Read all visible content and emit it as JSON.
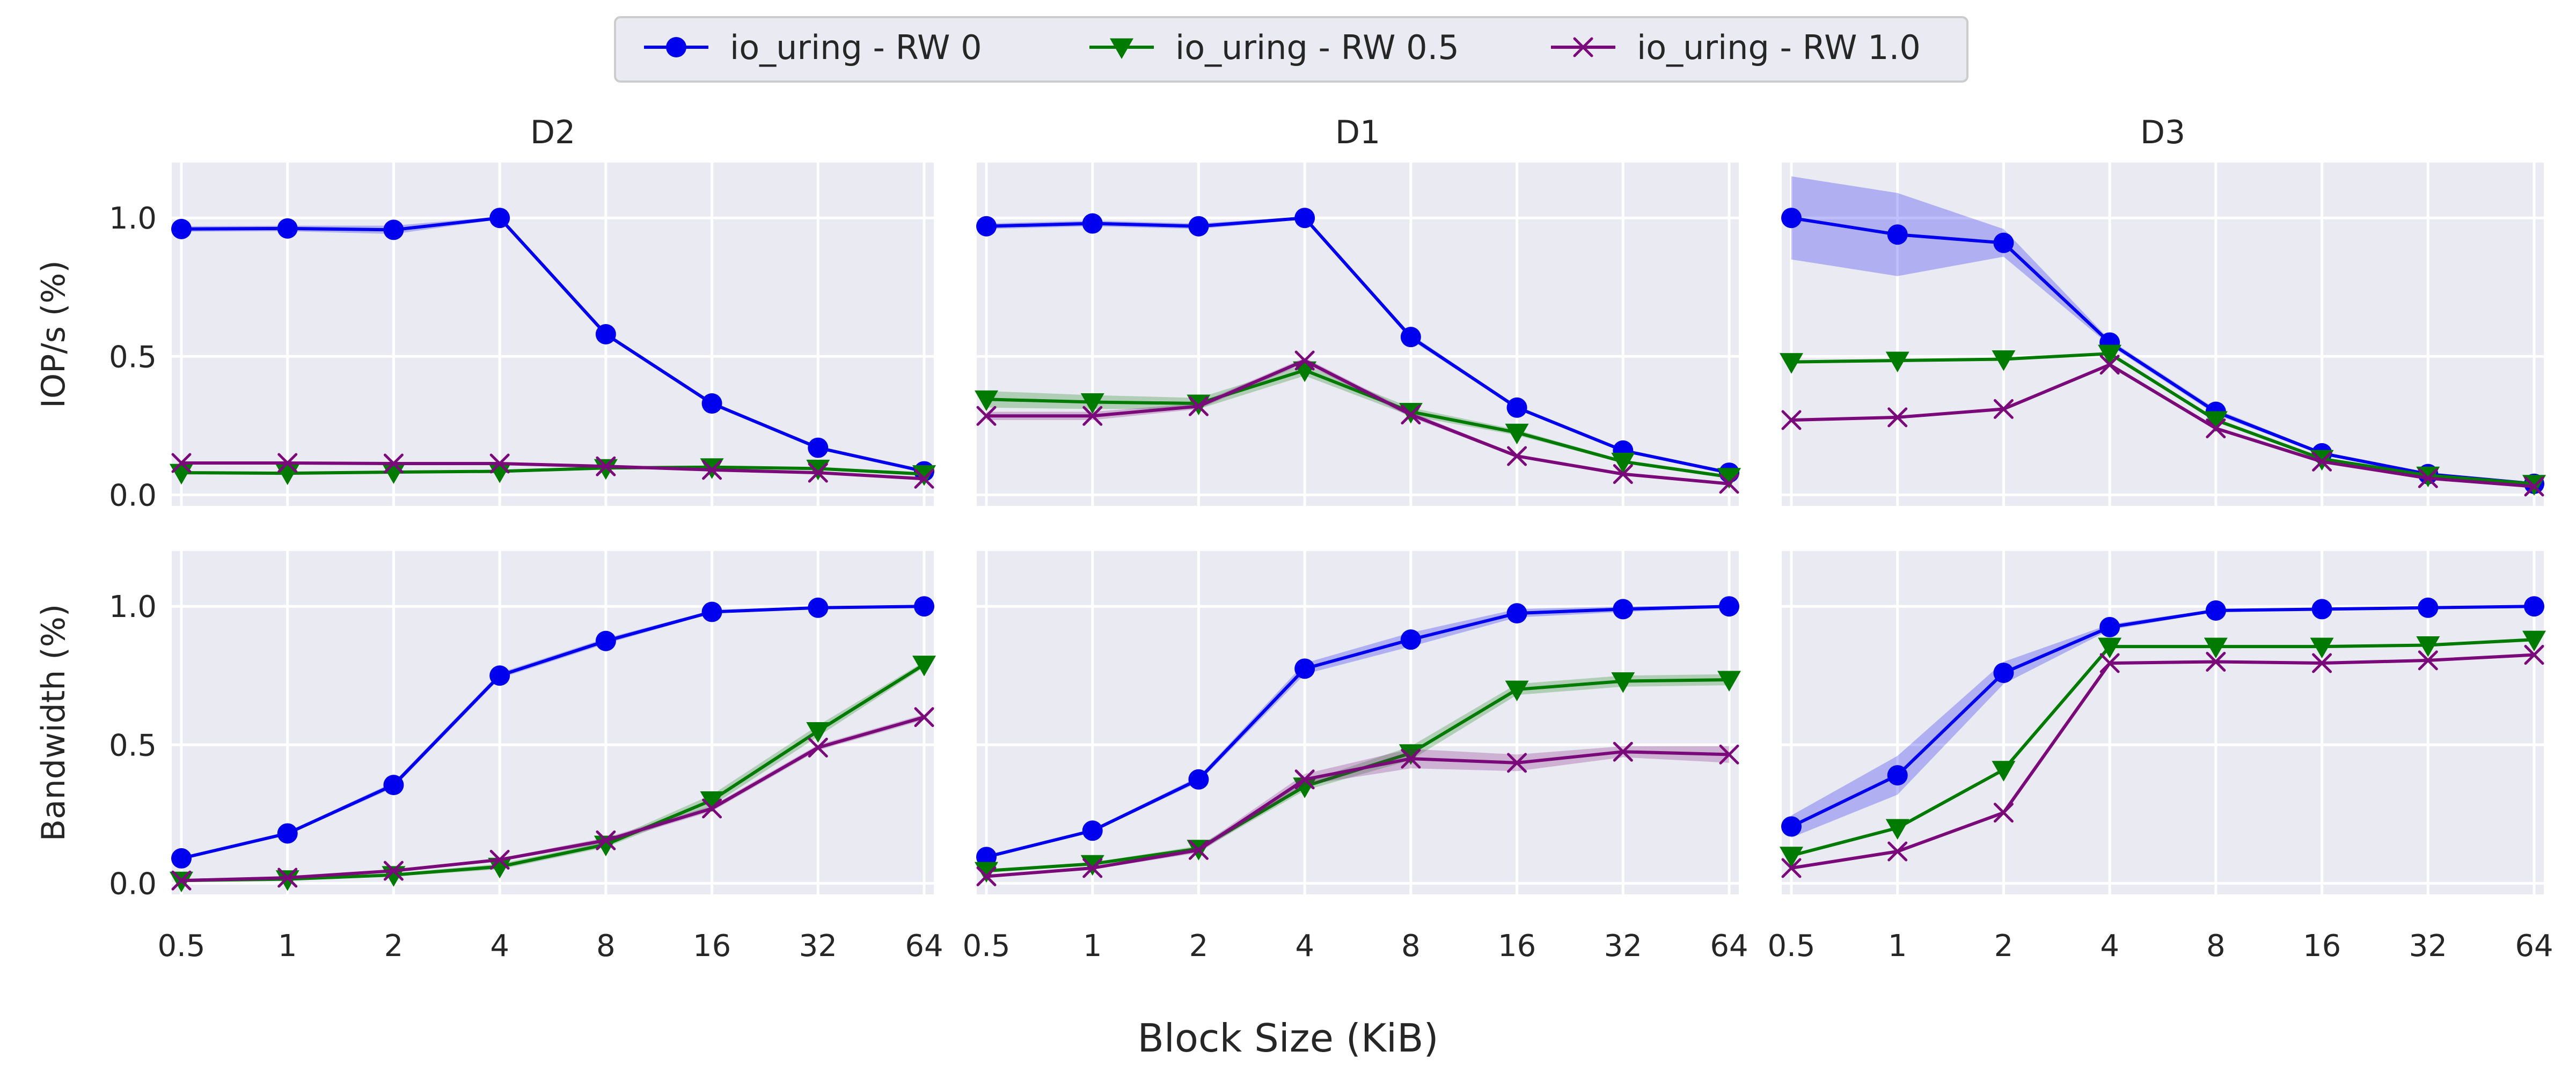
{
  "legend": {
    "entries": [
      {
        "label": "io_uring - RW 0",
        "color": "#0000ee",
        "marker": "circle"
      },
      {
        "label": "io_uring - RW 0.5",
        "color": "#007a00",
        "marker": "triangle-down"
      },
      {
        "label": "io_uring - RW 1.0",
        "color": "#7a0a7a",
        "marker": "x"
      }
    ],
    "placement": "top-center"
  },
  "shared_xlabel": "Block Size (KiB)",
  "chart_data": {
    "type": "line",
    "grid": true,
    "x_scale": "categorical",
    "x_ticks": [
      "0.5",
      "1",
      "2",
      "4",
      "8",
      "16",
      "32",
      "64"
    ],
    "ylim": [
      -0.04,
      1.2
    ],
    "y_ticks": [
      "0.0",
      "0.5",
      "1.0"
    ],
    "panels": [
      {
        "title": "D2",
        "row": 0,
        "col": 0,
        "ylabel": "IOP/s (%)",
        "series": [
          {
            "name": "io_uring - RW 0",
            "values": [
              0.96,
              0.962,
              0.957,
              1.0,
              0.58,
              0.33,
              0.17,
              0.085
            ],
            "band": [
              0.01,
              0.01,
              0.015,
              0.005,
              0.005,
              0.005,
              0.005,
              0.005
            ]
          },
          {
            "name": "io_uring - RW 0.5",
            "values": [
              0.08,
              0.078,
              0.082,
              0.085,
              0.097,
              0.1,
              0.095,
              0.075
            ],
            "band": [
              0.005,
              0.005,
              0.005,
              0.005,
              0.005,
              0.005,
              0.005,
              0.005
            ]
          },
          {
            "name": "io_uring - RW 1.0",
            "values": [
              0.115,
              0.115,
              0.113,
              0.113,
              0.103,
              0.09,
              0.08,
              0.058
            ],
            "band": [
              0.005,
              0.005,
              0.005,
              0.005,
              0.005,
              0.005,
              0.005,
              0.005
            ]
          }
        ]
      },
      {
        "title": "D1",
        "row": 0,
        "col": 1,
        "ylabel": "",
        "series": [
          {
            "name": "io_uring - RW 0",
            "values": [
              0.97,
              0.98,
              0.97,
              1.0,
              0.57,
              0.315,
              0.16,
              0.08
            ],
            "band": [
              0.01,
              0.01,
              0.01,
              0.005,
              0.01,
              0.005,
              0.005,
              0.005
            ]
          },
          {
            "name": "io_uring - RW 0.5",
            "values": [
              0.345,
              0.335,
              0.33,
              0.45,
              0.3,
              0.225,
              0.12,
              0.065
            ],
            "band": [
              0.03,
              0.025,
              0.02,
              0.02,
              0.015,
              0.01,
              0.005,
              0.005
            ]
          },
          {
            "name": "io_uring - RW 1.0",
            "values": [
              0.285,
              0.285,
              0.32,
              0.485,
              0.29,
              0.14,
              0.075,
              0.04
            ],
            "band": [
              0.015,
              0.015,
              0.01,
              0.01,
              0.01,
              0.005,
              0.005,
              0.005
            ]
          }
        ]
      },
      {
        "title": "D3",
        "row": 0,
        "col": 2,
        "ylabel": "",
        "series": [
          {
            "name": "io_uring - RW 0",
            "values": [
              1.0,
              0.94,
              0.91,
              0.55,
              0.3,
              0.15,
              0.075,
              0.04
            ],
            "band": [
              0.15,
              0.15,
              0.05,
              0.01,
              0.01,
              0.005,
              0.005,
              0.005
            ]
          },
          {
            "name": "io_uring - RW 0.5",
            "values": [
              0.48,
              0.485,
              0.49,
              0.51,
              0.27,
              0.13,
              0.07,
              0.04
            ],
            "band": [
              0.005,
              0.005,
              0.005,
              0.005,
              0.005,
              0.005,
              0.005,
              0.005
            ]
          },
          {
            "name": "io_uring - RW 1.0",
            "values": [
              0.27,
              0.28,
              0.31,
              0.47,
              0.24,
              0.12,
              0.06,
              0.03
            ],
            "band": [
              0.005,
              0.005,
              0.005,
              0.005,
              0.005,
              0.005,
              0.005,
              0.005
            ]
          }
        ]
      },
      {
        "title": "",
        "row": 1,
        "col": 0,
        "ylabel": "Bandwidth (%)",
        "series": [
          {
            "name": "io_uring - RW 0",
            "values": [
              0.09,
              0.18,
              0.355,
              0.75,
              0.875,
              0.98,
              0.995,
              1.0
            ],
            "band": [
              0.005,
              0.005,
              0.01,
              0.01,
              0.01,
              0.005,
              0.005,
              0.005
            ]
          },
          {
            "name": "io_uring - RW 0.5",
            "values": [
              0.01,
              0.015,
              0.03,
              0.06,
              0.14,
              0.3,
              0.55,
              0.79
            ],
            "band": [
              0.005,
              0.005,
              0.005,
              0.01,
              0.01,
              0.02,
              0.02,
              0.01
            ]
          },
          {
            "name": "io_uring - RW 1.0",
            "values": [
              0.01,
              0.02,
              0.045,
              0.085,
              0.155,
              0.27,
              0.49,
              0.6
            ],
            "band": [
              0.005,
              0.005,
              0.005,
              0.005,
              0.01,
              0.01,
              0.01,
              0.01
            ]
          }
        ]
      },
      {
        "title": "",
        "row": 1,
        "col": 1,
        "ylabel": "",
        "series": [
          {
            "name": "io_uring - RW 0",
            "values": [
              0.095,
              0.19,
              0.375,
              0.775,
              0.88,
              0.975,
              0.99,
              1.0
            ],
            "band": [
              0.005,
              0.005,
              0.01,
              0.02,
              0.025,
              0.015,
              0.01,
              0.005
            ]
          },
          {
            "name": "io_uring - RW 0.5",
            "values": [
              0.045,
              0.07,
              0.125,
              0.35,
              0.47,
              0.7,
              0.73,
              0.735
            ],
            "band": [
              0.005,
              0.005,
              0.01,
              0.015,
              0.025,
              0.02,
              0.02,
              0.02
            ]
          },
          {
            "name": "io_uring - RW 1.0",
            "values": [
              0.025,
              0.055,
              0.12,
              0.375,
              0.45,
              0.435,
              0.475,
              0.465
            ],
            "band": [
              0.005,
              0.005,
              0.01,
              0.02,
              0.035,
              0.03,
              0.02,
              0.03
            ]
          }
        ]
      },
      {
        "title": "",
        "row": 1,
        "col": 2,
        "ylabel": "",
        "series": [
          {
            "name": "io_uring - RW 0",
            "values": [
              0.205,
              0.39,
              0.76,
              0.925,
              0.985,
              0.99,
              0.995,
              1.0
            ],
            "band": [
              0.04,
              0.07,
              0.04,
              0.01,
              0.005,
              0.005,
              0.005,
              0.005
            ]
          },
          {
            "name": "io_uring - RW 0.5",
            "values": [
              0.1,
              0.2,
              0.41,
              0.855,
              0.855,
              0.855,
              0.86,
              0.88
            ],
            "band": [
              0.005,
              0.005,
              0.005,
              0.005,
              0.005,
              0.005,
              0.005,
              0.005
            ]
          },
          {
            "name": "io_uring - RW 1.0",
            "values": [
              0.055,
              0.115,
              0.255,
              0.795,
              0.8,
              0.795,
              0.805,
              0.825
            ],
            "band": [
              0.005,
              0.005,
              0.005,
              0.005,
              0.005,
              0.005,
              0.005,
              0.005
            ]
          }
        ]
      }
    ]
  }
}
